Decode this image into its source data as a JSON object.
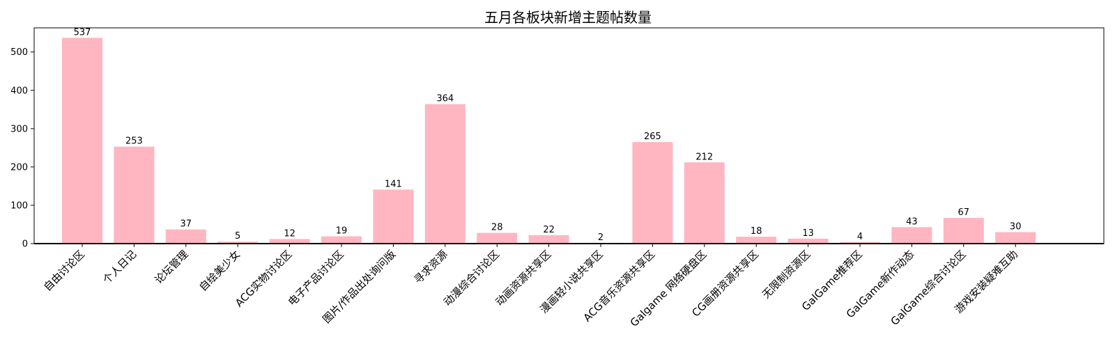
{
  "chart_data": {
    "type": "bar",
    "title": "五月各板块新增主题帖数量",
    "xlabel": "",
    "ylabel": "",
    "categories": [
      "自由讨论区",
      "个人日记",
      "论坛管理",
      "自绘美少女",
      "ACG实物讨论区",
      "电子产品讨论区",
      "图片/作品出处询问版",
      "寻求资源",
      "动漫综合讨论区",
      "动画资源共享区",
      "漫画轻小说共享区",
      "ACG音乐资源共享区",
      "Galgame 网络硬盘区",
      "CG画册资源共享区",
      "无限制资源区",
      "GalGame推荐区",
      "GalGame新作动态",
      "GalGame综合讨论区",
      "游戏安装疑难互助"
    ],
    "values": [
      537,
      253,
      37,
      5,
      12,
      19,
      141,
      364,
      28,
      22,
      2,
      265,
      212,
      18,
      13,
      4,
      43,
      67,
      30
    ],
    "yticks": [
      0,
      100,
      200,
      300,
      400,
      500
    ],
    "ylim": [
      0,
      563
    ],
    "bar_color": "#ffb6c1",
    "grid": false,
    "legend": "none"
  }
}
